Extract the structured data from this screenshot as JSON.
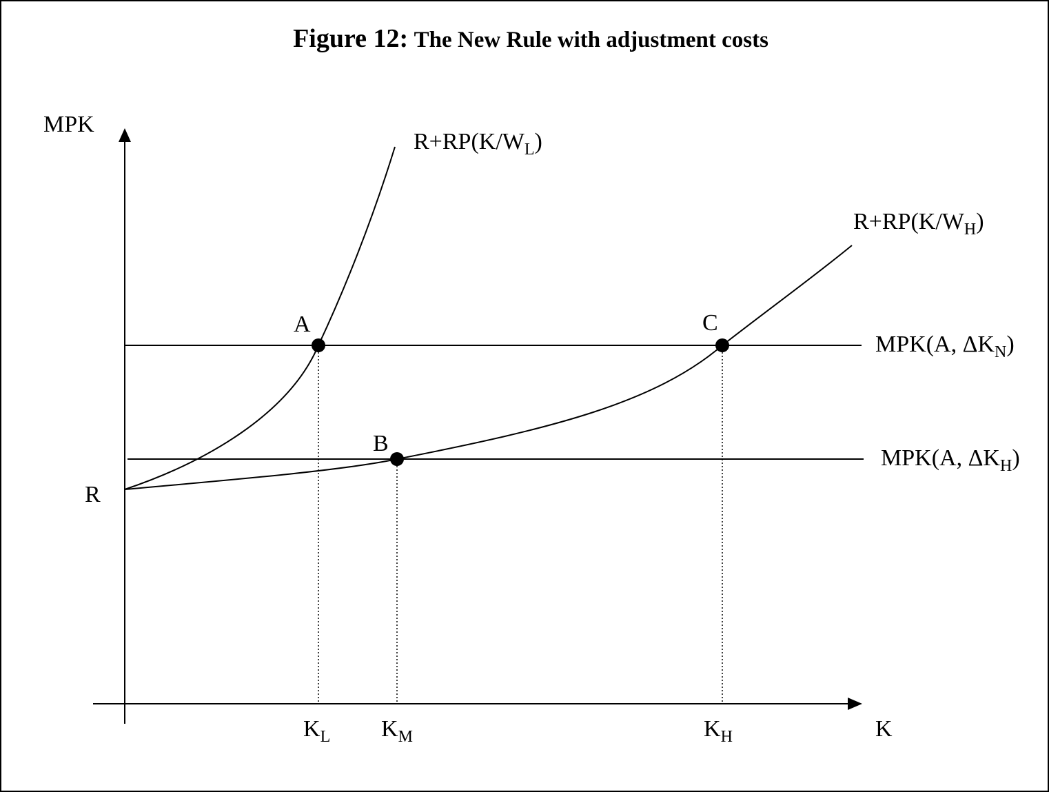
{
  "title": {
    "number": "Figure 12:",
    "text": "The New Rule with adjustment costs"
  },
  "axes": {
    "y": "MPK",
    "x": "K",
    "origin": "R"
  },
  "points": {
    "a": "A",
    "b": "B",
    "c": "C"
  },
  "x_markers": {
    "low": {
      "main": "K",
      "sub": "L"
    },
    "mid": {
      "main": "K",
      "sub": "M"
    },
    "high": {
      "main": "K",
      "sub": "H"
    }
  },
  "curves": {
    "low": {
      "main": "R+RP(K/W",
      "sub": "L",
      "close": ")"
    },
    "high": {
      "main": "R+RP(K/W",
      "sub": "H",
      "close": ")"
    }
  },
  "lines": {
    "upper": {
      "main": "MPK(A, ΔK",
      "sub": "N",
      "close": ")"
    },
    "lower": {
      "main": "MPK(A, ΔK",
      "sub": "H",
      "close": ")"
    }
  }
}
